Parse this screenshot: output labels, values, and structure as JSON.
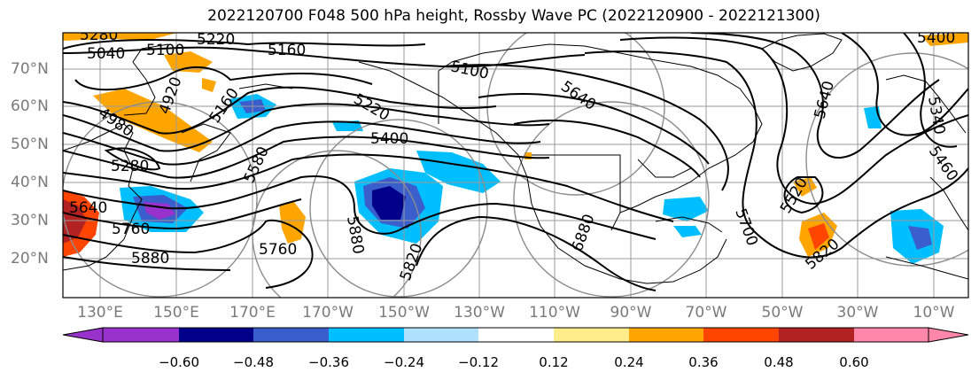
{
  "title": "2022120700 F048 500 hPa height, Rossby Wave PC (2022120900 - 2022121300)",
  "map": {
    "lat_labels": [
      "70°N",
      "60°N",
      "50°N",
      "40°N",
      "30°N",
      "20°N"
    ],
    "lon_labels": [
      "130°E",
      "150°E",
      "170°E",
      "170°W",
      "150°W",
      "130°W",
      "110°W",
      "90°W",
      "70°W",
      "50°W",
      "30°W",
      "10°W"
    ],
    "contour_labels": [
      "5280",
      "5100",
      "5220",
      "5160",
      "5040",
      "5100",
      "4920",
      "4980",
      "5160",
      "5220",
      "5400",
      "5280",
      "5580",
      "5640",
      "5640",
      "5760",
      "5880",
      "5760",
      "5880",
      "5820",
      "6880",
      "5700",
      "5520",
      "5820",
      "5640",
      "5460",
      "5340",
      "5400"
    ]
  },
  "colorbar": {
    "tick_labels": [
      "−0.60",
      "−0.48",
      "−0.36",
      "−0.24",
      "−0.12",
      "0.12",
      "0.24",
      "0.36",
      "0.48",
      "0.60"
    ],
    "colors": [
      "#9932cc",
      "#00008b",
      "#3a5fcd",
      "#00bfff",
      "#b0e2ff",
      "#ffffff",
      "#ffec8b",
      "#ffa500",
      "#ff4500",
      "#b22222",
      "#ff88aa"
    ]
  }
}
